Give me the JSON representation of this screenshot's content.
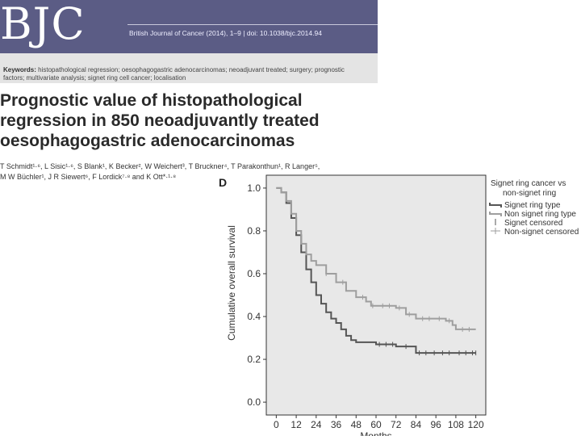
{
  "header": {
    "logo": "BJC",
    "citation": "British Journal of Cancer (2014), 1–9 | doi: 10.1038/bjc.2014.94"
  },
  "keywords": {
    "label": "Keywords:",
    "line1": "histopathological regression; oesophagogastric adenocarcinomas; neoadjuvant treated; surgery; prognostic",
    "line2": "factors; multivariate analysis; signet ring cell cancer; localisation"
  },
  "title": {
    "line1": "Prognostic value of histopathological",
    "line2": "regression in 850 neoadjuvantly treated",
    "line3": "oesophagogastric adenocarcinomas"
  },
  "authors": {
    "line1": "T Schmidt¹·⁶, L Sisic¹·⁶, S Blank¹, K Becker², W Weichert³, T Bruckner⁴, T Parakonthun¹, R Langer⁵,",
    "line2": "M W Büchler¹, J R Siewert⁶, F Lordick⁷·⁸ and K Ott*·¹·⁸"
  },
  "figure": {
    "panel_letter": "D"
  },
  "chart_data": {
    "type": "line",
    "xlabel": "Months",
    "ylabel": "Cumulative overall survival",
    "x_ticks": [
      0,
      12,
      24,
      36,
      48,
      60,
      72,
      84,
      96,
      108,
      120
    ],
    "y_ticks": [
      "0.0",
      "0.2",
      "0.4",
      "0.6",
      "0.8",
      "1.0"
    ],
    "xlim": [
      -6,
      126
    ],
    "ylim": [
      -0.06,
      1.06
    ],
    "legend_title_1": "Signet ring cancer vs",
    "legend_title_2": "non-signet ring",
    "legend_placement": "top-right-outside",
    "grid": false,
    "background_color": "#e8e8e8",
    "series": [
      {
        "name": "Signet ring type",
        "color": "#555555",
        "points": [
          [
            0,
            1.0
          ],
          [
            3,
            0.98
          ],
          [
            6,
            0.93
          ],
          [
            9,
            0.86
          ],
          [
            12,
            0.78
          ],
          [
            15,
            0.7
          ],
          [
            18,
            0.62
          ],
          [
            21,
            0.56
          ],
          [
            24,
            0.5
          ],
          [
            27,
            0.46
          ],
          [
            30,
            0.42
          ],
          [
            33,
            0.39
          ],
          [
            36,
            0.37
          ],
          [
            39,
            0.34
          ],
          [
            42,
            0.31
          ],
          [
            45,
            0.29
          ],
          [
            48,
            0.28
          ],
          [
            54,
            0.28
          ],
          [
            60,
            0.27
          ],
          [
            72,
            0.26
          ],
          [
            81,
            0.26
          ],
          [
            84,
            0.23
          ],
          [
            120,
            0.23
          ]
        ],
        "censor_x": [
          62,
          66,
          70,
          78,
          86,
          90,
          95,
          100,
          104,
          110,
          114,
          118,
          120
        ]
      },
      {
        "name": "Non signet ring type",
        "color": "#9e9e9e",
        "points": [
          [
            0,
            1.0
          ],
          [
            3,
            0.98
          ],
          [
            6,
            0.94
          ],
          [
            9,
            0.88
          ],
          [
            12,
            0.8
          ],
          [
            15,
            0.74
          ],
          [
            18,
            0.69
          ],
          [
            21,
            0.66
          ],
          [
            24,
            0.64
          ],
          [
            30,
            0.6
          ],
          [
            36,
            0.56
          ],
          [
            42,
            0.52
          ],
          [
            48,
            0.49
          ],
          [
            54,
            0.47
          ],
          [
            57,
            0.45
          ],
          [
            60,
            0.45
          ],
          [
            72,
            0.44
          ],
          [
            78,
            0.41
          ],
          [
            84,
            0.39
          ],
          [
            96,
            0.39
          ],
          [
            102,
            0.38
          ],
          [
            106,
            0.36
          ],
          [
            108,
            0.34
          ],
          [
            120,
            0.34
          ]
        ],
        "censor_x": [
          30,
          40,
          52,
          58,
          64,
          68,
          74,
          80,
          88,
          92,
          98,
          104,
          112,
          116
        ]
      }
    ],
    "censor_legend": [
      {
        "name": "Signet censored",
        "color": "#555555"
      },
      {
        "name": "Non-signet censored",
        "color": "#9e9e9e"
      }
    ]
  }
}
